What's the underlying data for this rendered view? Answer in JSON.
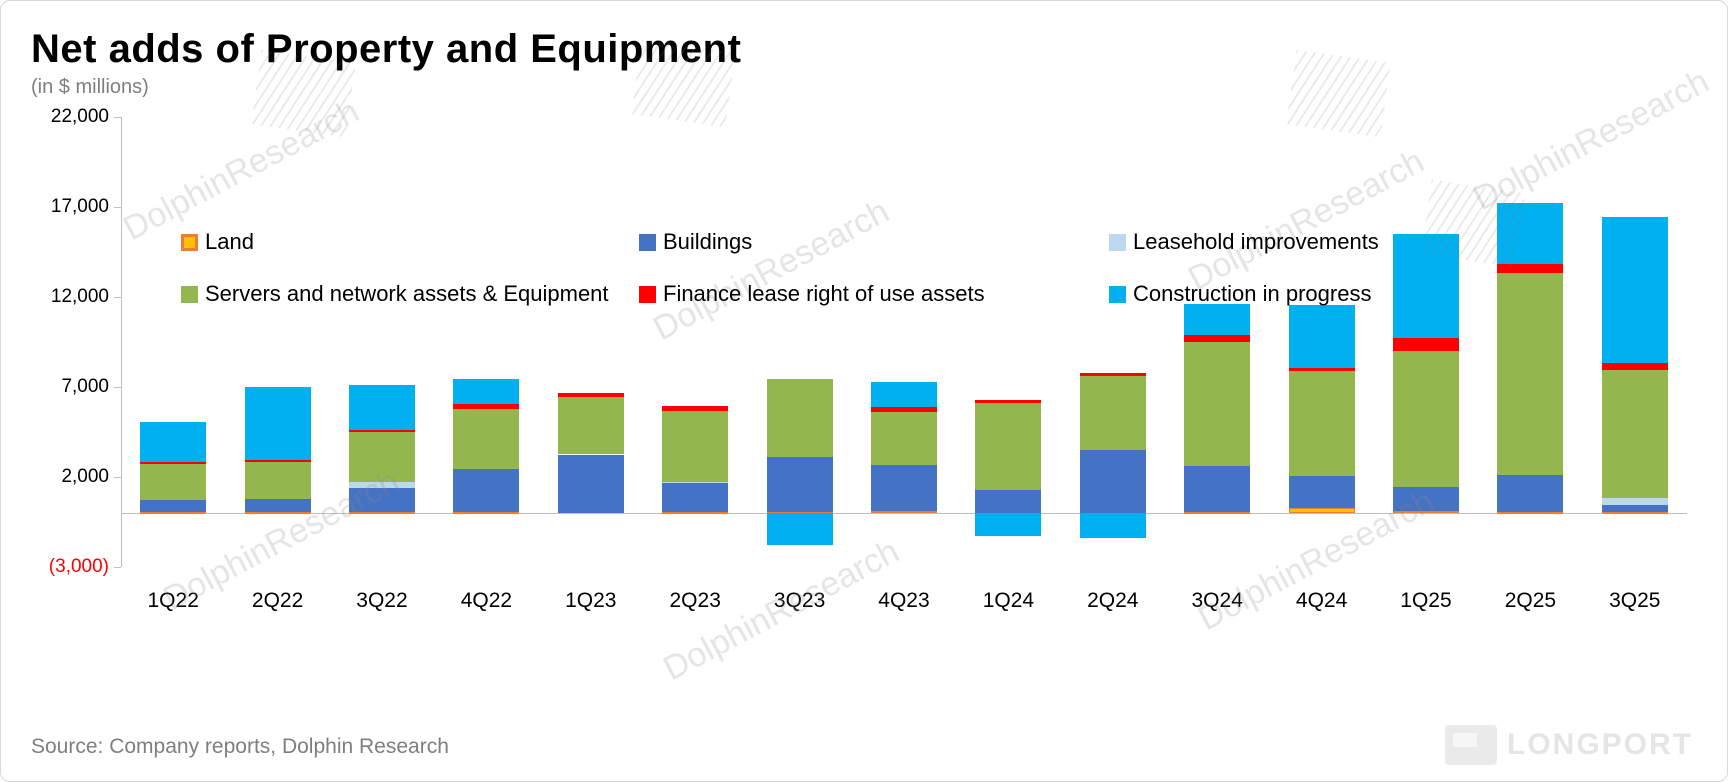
{
  "header": {
    "title": "Net adds of Property and Equipment",
    "subtitle": "(in $ millions)"
  },
  "source": "Source:  Company reports, Dolphin Research",
  "watermark": "DolphinResearch",
  "brand": "LONGPORT",
  "chart_data": {
    "type": "bar",
    "stacked": true,
    "title": "Net adds of Property and Equipment",
    "subtitle": "(in $ millions)",
    "ylim": [
      -3000,
      22000
    ],
    "yticks": [
      22000,
      17000,
      12000,
      7000,
      2000,
      -3000
    ],
    "ytick_labels": [
      "22,000",
      "17,000",
      "12,000",
      "7,000",
      "2,000",
      "(3,000)"
    ],
    "grid": false,
    "legend_position": "top-inside-two-rows",
    "categories": [
      "1Q22",
      "2Q22",
      "3Q22",
      "4Q22",
      "1Q23",
      "2Q23",
      "3Q23",
      "4Q23",
      "1Q24",
      "2Q24",
      "3Q24",
      "4Q24",
      "1Q25",
      "2Q25",
      "3Q25"
    ],
    "series": [
      {
        "name": "Land",
        "color": "#ffc000",
        "border_color": "#ed7d31",
        "values": [
          60,
          60,
          60,
          60,
          0,
          40,
          40,
          90,
          0,
          0,
          60,
          280,
          120,
          60,
          40
        ]
      },
      {
        "name": "Buildings",
        "color": "#4472c4",
        "values": [
          650,
          700,
          1350,
          2400,
          3250,
          1600,
          3050,
          2600,
          1300,
          3500,
          2550,
          1800,
          1300,
          2050,
          400
        ]
      },
      {
        "name": "Leasehold improvements",
        "color": "#bdd7ee",
        "values": [
          0,
          0,
          300,
          0,
          0,
          80,
          0,
          0,
          0,
          0,
          0,
          0,
          0,
          0,
          400
        ]
      },
      {
        "name": "Servers and network assets & Equipment",
        "color": "#94b64e",
        "values": [
          2000,
          2100,
          2800,
          3300,
          3200,
          3950,
          4350,
          2900,
          4800,
          4100,
          6900,
          5800,
          7600,
          11200,
          7100
        ]
      },
      {
        "name": "Finance lease right of use assets",
        "color": "#ff0000",
        "values": [
          150,
          100,
          100,
          300,
          200,
          250,
          0,
          300,
          200,
          200,
          400,
          200,
          700,
          500,
          400
        ]
      },
      {
        "name": "Construction in progress",
        "color": "#00b0f0",
        "values": [
          2200,
          4050,
          2500,
          1400,
          0,
          0,
          -1750,
          1400,
          -1300,
          -1400,
          1700,
          3500,
          5800,
          3400,
          8100
        ]
      }
    ]
  }
}
